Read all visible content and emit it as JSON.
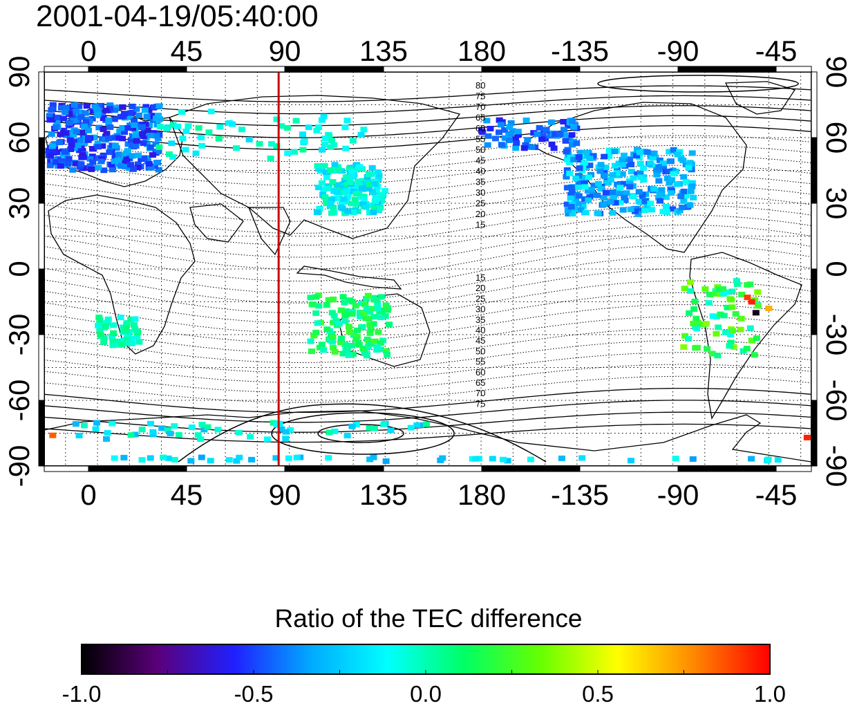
{
  "map": {
    "timestamp": "2001-04-19/05:40:00",
    "top_axis_labels": [
      "0",
      "45",
      "90",
      "135",
      "180",
      "-135",
      "-90",
      "-45"
    ],
    "bottom_axis_labels": [
      "0",
      "45",
      "90",
      "135",
      "180",
      "-135",
      "-90",
      "-45"
    ],
    "left_axis_labels": [
      "90",
      "60",
      "30",
      "0",
      "-30",
      "-60",
      "-90"
    ],
    "right_axis_labels": [
      "90",
      "60",
      "30",
      "0",
      "-30",
      "-60",
      "-90"
    ],
    "central_meridian_longitude_deg": 100,
    "meridian_line_color": "#cc0000",
    "contour_labels_north": [
      "80",
      "75",
      "70",
      "65",
      "60",
      "55",
      "50",
      "45",
      "40",
      "35",
      "30",
      "25",
      "20",
      "15"
    ],
    "contour_labels_south": [
      "15",
      "20",
      "25",
      "30",
      "35",
      "40",
      "45",
      "50",
      "55",
      "60",
      "65",
      "70",
      "75"
    ],
    "data_regions": [
      "Europe",
      "North America",
      "East Asia",
      "Australia",
      "Southern Africa",
      "South America",
      "Antarctic coast"
    ]
  },
  "colorbar": {
    "title": "Ratio of the TEC difference",
    "min": -1.0,
    "max": 1.0,
    "tick_labels": [
      "-1.0",
      "-0.5",
      "0.0",
      "0.5",
      "1.0"
    ],
    "colors": [
      "#000000",
      "#5a007a",
      "#2020ff",
      "#00aaff",
      "#00ffff",
      "#00ff66",
      "#66ff00",
      "#ffff00",
      "#ff8800",
      "#ff0000"
    ]
  },
  "chart_data": {
    "type": "heatmap",
    "title": "2001-04-19/05:40:00",
    "xlabel": "",
    "ylabel": "",
    "xlim": [
      -10,
      350
    ],
    "ylim": [
      -90,
      90
    ],
    "colorbar_label": "Ratio of the TEC difference",
    "colorbar_range": [
      -1.0,
      1.0
    ]
  }
}
